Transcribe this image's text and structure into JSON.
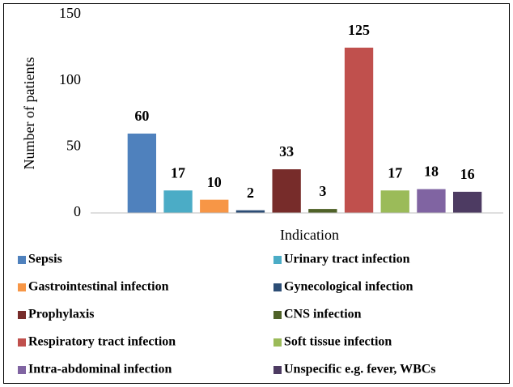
{
  "chart_data": {
    "type": "bar",
    "y_label": "Number of patients",
    "categories": [
      "Indication"
    ],
    "ylim": [
      0,
      150
    ],
    "yticks": [
      0,
      50,
      100,
      150
    ],
    "grid": false,
    "legend": "bottom",
    "series": [
      {
        "name": "Sepsis",
        "color": "#4f81bd",
        "values": [
          60
        ]
      },
      {
        "name": "Urinary tract infection",
        "color": "#4bacc6",
        "values": [
          17
        ]
      },
      {
        "name": "Gastrointestinal infection",
        "color": "#f79646",
        "values": [
          10
        ]
      },
      {
        "name": "Gynecological infection",
        "color": "#2c4d75",
        "values": [
          2
        ]
      },
      {
        "name": "Prophylaxis",
        "color": "#772c2a",
        "values": [
          33
        ]
      },
      {
        "name": "CNS infection",
        "color": "#4f6228",
        "values": [
          3
        ]
      },
      {
        "name": "Respiratory tract infection",
        "color": "#c0504d",
        "values": [
          125
        ]
      },
      {
        "name": "Soft tissue infection",
        "color": "#9bbb59",
        "values": [
          17
        ]
      },
      {
        "name": "Intra-abdominal infection",
        "color": "#8064a2",
        "values": [
          18
        ]
      },
      {
        "name": "Unspecific e.g. fever, WBCs",
        "color": "#4d3b62",
        "values": [
          16
        ]
      }
    ]
  }
}
